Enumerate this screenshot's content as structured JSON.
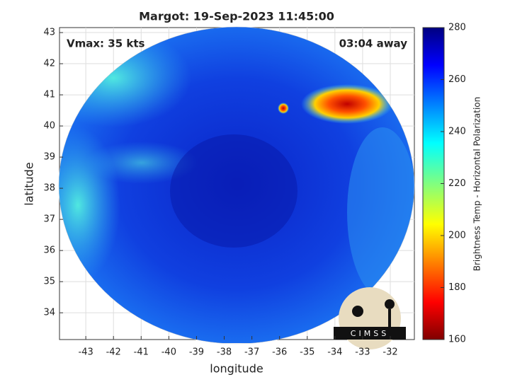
{
  "chart_data": {
    "type": "map",
    "title": "Margot: 19-Sep-2023 11:45:00",
    "annotations": [
      "Vmax: 35 kts",
      "03:04 away"
    ],
    "x_label": "longitude",
    "y_label": "latitude",
    "xlim": [
      -43.95,
      -31.13
    ],
    "xticks": [
      -43,
      -42,
      -41,
      -40,
      -39,
      -38,
      -37,
      -36,
      -35,
      -34,
      -33,
      -32
    ],
    "ylim": [
      33.14,
      43.16
    ],
    "yticks": [
      34,
      35,
      36,
      37,
      38,
      39,
      40,
      41,
      42,
      43
    ],
    "grid": true,
    "colorbar": {
      "label": "Brightness Temp - Horizontal Polarization",
      "lim": [
        160,
        280
      ],
      "ticks": [
        160,
        180,
        200,
        220,
        240,
        260,
        280
      ],
      "colormap": "jet"
    },
    "logo": "CIMSS"
  }
}
